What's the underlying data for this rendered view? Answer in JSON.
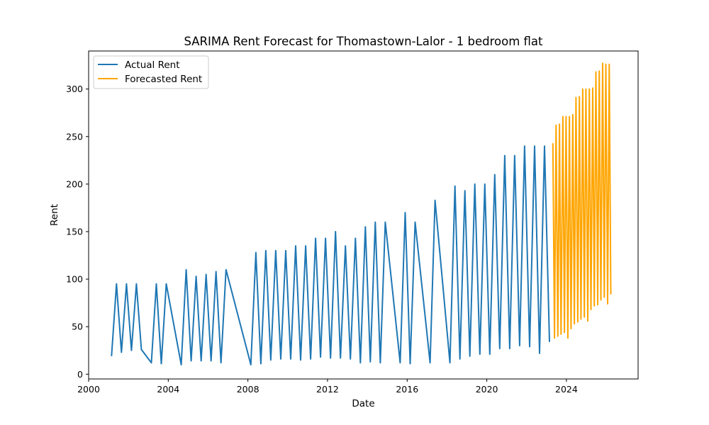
{
  "chart_data": {
    "type": "line",
    "title": "SARIMA Rent Forecast for Thomastown-Lalor - 1 bedroom flat",
    "xlabel": "Date",
    "ylabel": "Rent",
    "xlim": [
      2000.0,
      2027.6
    ],
    "ylim": [
      -5,
      340
    ],
    "xticks": [
      2000,
      2004,
      2008,
      2012,
      2016,
      2020,
      2024
    ],
    "yticks": [
      0,
      50,
      100,
      150,
      200,
      250,
      300
    ],
    "grid": false,
    "legend": "upper-left",
    "series": [
      {
        "name": "Actual Rent",
        "color": "#1f77b4",
        "x": [
          2001.15,
          2001.4,
          2001.65,
          2001.9,
          2002.15,
          2002.4,
          2002.65,
          2003.15,
          2003.4,
          2003.65,
          2003.9,
          2004.65,
          2004.9,
          2005.15,
          2005.4,
          2005.65,
          2005.9,
          2006.15,
          2006.4,
          2006.65,
          2006.9,
          2008.15,
          2008.4,
          2008.65,
          2008.9,
          2009.15,
          2009.4,
          2009.65,
          2009.9,
          2010.15,
          2010.4,
          2010.65,
          2010.9,
          2011.15,
          2011.4,
          2011.65,
          2011.9,
          2012.15,
          2012.4,
          2012.65,
          2012.9,
          2013.15,
          2013.4,
          2013.65,
          2013.9,
          2014.15,
          2014.4,
          2014.65,
          2014.9,
          2015.65,
          2015.9,
          2016.15,
          2016.4,
          2017.15,
          2017.4,
          2018.15,
          2018.4,
          2018.65,
          2018.9,
          2019.15,
          2019.4,
          2019.65,
          2019.9,
          2020.15,
          2020.4,
          2020.65,
          2020.9,
          2021.15,
          2021.4,
          2021.65,
          2021.9,
          2022.15,
          2022.4,
          2022.65,
          2022.9,
          2023.15
        ],
        "y": [
          19,
          95,
          23,
          95,
          25,
          95,
          26,
          12,
          95,
          11,
          95,
          10,
          110,
          14,
          103,
          14,
          105,
          14,
          108,
          12,
          110,
          10,
          128,
          11,
          130,
          15,
          130,
          16,
          130,
          16,
          135,
          15,
          135,
          16,
          143,
          18,
          143,
          17,
          150,
          17,
          135,
          16,
          143,
          12,
          155,
          13,
          160,
          12,
          160,
          12,
          170,
          11,
          160,
          12,
          183,
          12,
          198,
          16,
          193,
          19,
          200,
          21,
          200,
          21,
          210,
          27,
          230,
          27,
          230,
          30,
          240,
          29,
          240,
          22,
          240,
          34
        ]
      },
      {
        "name": "Forecasted Rent",
        "color": "#ffa500",
        "x": [
          2023.32,
          2023.4,
          2023.48,
          2023.57,
          2023.65,
          2023.73,
          2023.82,
          2023.9,
          2023.98,
          2024.07,
          2024.15,
          2024.23,
          2024.32,
          2024.4,
          2024.48,
          2024.57,
          2024.65,
          2024.73,
          2024.82,
          2024.9,
          2024.98,
          2025.07,
          2025.15,
          2025.23,
          2025.32,
          2025.4,
          2025.48,
          2025.57,
          2025.65,
          2025.73,
          2025.82,
          2025.9,
          2025.98,
          2026.07,
          2026.15,
          2026.23
        ],
        "y": [
          243,
          38,
          262,
          40,
          263,
          42,
          271,
          44,
          271,
          38,
          271,
          48,
          273,
          53,
          291,
          55,
          292,
          58,
          300,
          60,
          300,
          56,
          300,
          68,
          301,
          72,
          318,
          73,
          319,
          78,
          327,
          81,
          326,
          74,
          326,
          84
        ]
      }
    ]
  }
}
